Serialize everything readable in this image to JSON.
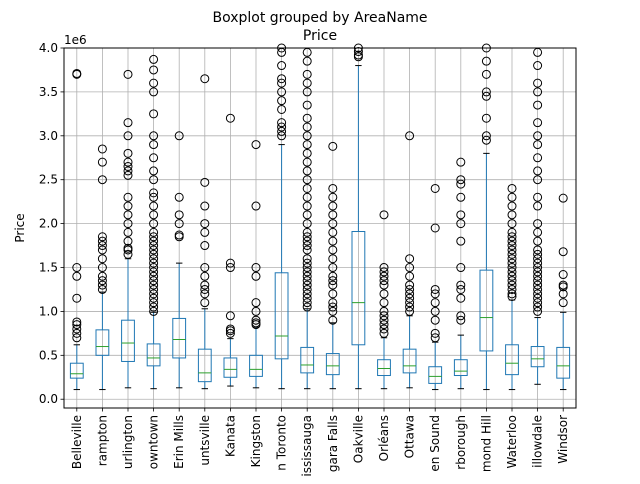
{
  "chart_data": {
    "type": "boxplot",
    "suptitle": "Boxplot grouped by AreaName",
    "title": "Price",
    "xlabel": "",
    "ylabel": "Price",
    "y_offset_label": "1e6",
    "ylim": [
      -0.1,
      4.0
    ],
    "yticks": [
      0.0,
      0.5,
      1.0,
      1.5,
      2.0,
      2.5,
      3.0,
      3.5,
      4.0
    ],
    "ytick_labels": [
      "0.0",
      "0.5",
      "1.0",
      "1.5",
      "2.0",
      "2.5",
      "3.0",
      "3.5",
      "4.0"
    ],
    "grid": true,
    "legend": "none",
    "colors": {
      "box": "#1f77b4",
      "median": "#2ca02c",
      "grid": "#b0b0b0",
      "flier": "#000000"
    },
    "categories": [
      "Belleville",
      "Brampton",
      "Burlington",
      "Downtown",
      "Erin Mills",
      "Huntsville",
      "Kanata",
      "Kingston",
      "North Toronto",
      "Mississauga",
      "Niagara Falls",
      "Oakville",
      "Orléans",
      "Ottawa",
      "Owen Sound",
      "Peterborough",
      "Richmond Hill",
      "Waterloo",
      "Willowdale",
      "Windsor"
    ],
    "tick_labels_visible": [
      "Belleville",
      "rampton",
      "urlington",
      "owntown",
      "Erin Mills",
      "untsville",
      "Kanata",
      "Kingston",
      "n Toronto",
      "ississauga",
      "gara Falls",
      "Oakville",
      "Orléans",
      "Ottawa",
      "en Sound",
      "rborough",
      "mond Hill",
      "Waterloo",
      "illowdale",
      "Windsor"
    ],
    "boxes": [
      {
        "q1": 0.24,
        "median": 0.29,
        "q3": 0.41,
        "whislo": 0.11,
        "whishi": 0.62,
        "fliers": [
          0.7,
          0.75,
          0.8,
          0.85,
          0.88,
          1.15,
          1.4,
          1.5,
          3.7,
          3.71
        ]
      },
      {
        "q1": 0.5,
        "median": 0.6,
        "q3": 0.79,
        "whislo": 0.11,
        "whishi": 1.22,
        "fliers": [
          1.25,
          1.3,
          1.35,
          1.4,
          1.5,
          1.6,
          1.7,
          1.75,
          1.8,
          1.85,
          2.5,
          2.7,
          2.85
        ]
      },
      {
        "q1": 0.43,
        "median": 0.64,
        "q3": 0.9,
        "whislo": 0.13,
        "whishi": 1.6,
        "fliers": [
          1.65,
          1.7,
          1.72,
          1.8,
          1.9,
          2.0,
          2.1,
          2.2,
          2.3,
          2.55,
          2.6,
          2.65,
          2.7,
          2.8,
          3.0,
          3.15,
          3.7
        ]
      },
      {
        "q1": 0.38,
        "median": 0.47,
        "q3": 0.63,
        "whislo": 0.12,
        "whishi": 0.99,
        "fliers": [
          1.0,
          1.05,
          1.1,
          1.15,
          1.2,
          1.25,
          1.3,
          1.35,
          1.4,
          1.45,
          1.5,
          1.55,
          1.6,
          1.65,
          1.7,
          1.75,
          1.8,
          1.85,
          1.9,
          2.0,
          2.1,
          2.2,
          2.3,
          2.35,
          2.5,
          2.6,
          2.75,
          2.9,
          3.0,
          3.25,
          3.5,
          3.6,
          3.75,
          3.87
        ]
      },
      {
        "q1": 0.47,
        "median": 0.68,
        "q3": 0.92,
        "whislo": 0.13,
        "whishi": 1.55,
        "fliers": [
          1.85,
          1.87,
          2.0,
          2.1,
          2.3,
          3.0
        ]
      },
      {
        "q1": 0.2,
        "median": 0.3,
        "q3": 0.57,
        "whislo": 0.12,
        "whishi": 1.03,
        "fliers": [
          1.1,
          1.2,
          1.25,
          1.3,
          1.4,
          1.5,
          1.75,
          1.9,
          2.0,
          2.2,
          2.47,
          3.65
        ]
      },
      {
        "q1": 0.25,
        "median": 0.34,
        "q3": 0.47,
        "whislo": 0.15,
        "whishi": 0.69,
        "fliers": [
          0.75,
          0.78,
          0.8,
          0.95,
          1.5,
          1.55,
          3.2
        ]
      },
      {
        "q1": 0.26,
        "median": 0.34,
        "q3": 0.5,
        "whislo": 0.13,
        "whishi": 0.82,
        "fliers": [
          0.85,
          0.87,
          0.9,
          1.0,
          1.1,
          1.4,
          1.5,
          2.2,
          2.9
        ]
      },
      {
        "q1": 0.46,
        "median": 0.72,
        "q3": 1.44,
        "whislo": 0.12,
        "whishi": 2.9,
        "fliers": [
          3.0,
          3.05,
          3.1,
          3.15,
          3.3,
          3.4,
          3.5,
          3.6,
          3.65,
          3.8,
          3.95,
          4.0
        ]
      },
      {
        "q1": 0.3,
        "median": 0.39,
        "q3": 0.59,
        "whislo": 0.12,
        "whishi": 1.03,
        "fliers": [
          1.05,
          1.1,
          1.15,
          1.2,
          1.25,
          1.3,
          1.35,
          1.4,
          1.45,
          1.5,
          1.55,
          1.6,
          1.7,
          1.75,
          1.8,
          1.85,
          1.9,
          2.0,
          2.1,
          2.2,
          2.3,
          2.4,
          2.5,
          2.6,
          2.7,
          2.8,
          2.9,
          3.0,
          3.1,
          3.2,
          3.35,
          3.5,
          3.6,
          3.7,
          3.85,
          3.95
        ]
      },
      {
        "q1": 0.28,
        "median": 0.38,
        "q3": 0.52,
        "whislo": 0.12,
        "whishi": 0.87,
        "fliers": [
          0.9,
          1.0,
          1.05,
          1.1,
          1.2,
          1.3,
          1.35,
          1.4,
          1.5,
          1.6,
          1.7,
          1.8,
          1.9,
          2.0,
          2.1,
          2.2,
          2.3,
          2.4,
          2.88
        ]
      },
      {
        "q1": 0.62,
        "median": 1.1,
        "q3": 1.91,
        "whislo": 0.12,
        "whishi": 3.8,
        "fliers": [
          3.9,
          3.92,
          3.96,
          4.0
        ]
      },
      {
        "q1": 0.27,
        "median": 0.35,
        "q3": 0.45,
        "whislo": 0.12,
        "whishi": 0.7,
        "fliers": [
          0.75,
          0.8,
          0.85,
          0.9,
          0.95,
          1.0,
          1.1,
          1.2,
          1.3,
          1.35,
          1.4,
          1.45,
          1.5,
          2.1
        ]
      },
      {
        "q1": 0.3,
        "median": 0.38,
        "q3": 0.57,
        "whislo": 0.13,
        "whishi": 0.95,
        "fliers": [
          1.0,
          1.05,
          1.1,
          1.15,
          1.2,
          1.25,
          1.3,
          1.4,
          1.5,
          1.6,
          3.0
        ]
      },
      {
        "q1": 0.18,
        "median": 0.26,
        "q3": 0.37,
        "whislo": 0.11,
        "whishi": 0.65,
        "fliers": [
          0.7,
          0.75,
          0.9,
          1.0,
          1.1,
          1.2,
          1.25,
          1.95,
          2.4
        ]
      },
      {
        "q1": 0.27,
        "median": 0.32,
        "q3": 0.45,
        "whislo": 0.12,
        "whishi": 0.73,
        "fliers": [
          0.9,
          0.95,
          1.15,
          1.25,
          1.3,
          1.5,
          1.8,
          2.0,
          2.1,
          2.3,
          2.45,
          2.5,
          2.7
        ]
      },
      {
        "q1": 0.55,
        "median": 0.93,
        "q3": 1.47,
        "whislo": 0.11,
        "whishi": 2.8,
        "fliers": [
          2.95,
          3.0,
          3.2,
          3.45,
          3.5,
          3.7,
          3.85,
          4.0
        ]
      },
      {
        "q1": 0.28,
        "median": 0.41,
        "q3": 0.62,
        "whislo": 0.11,
        "whishi": 1.13,
        "fliers": [
          1.17,
          1.2,
          1.25,
          1.3,
          1.35,
          1.4,
          1.45,
          1.5,
          1.55,
          1.6,
          1.65,
          1.7,
          1.75,
          1.8,
          1.85,
          1.9,
          2.0,
          2.1,
          2.2,
          2.3,
          2.4
        ]
      },
      {
        "q1": 0.37,
        "median": 0.46,
        "q3": 0.6,
        "whislo": 0.17,
        "whishi": 0.93,
        "fliers": [
          1.0,
          1.05,
          1.1,
          1.15,
          1.2,
          1.25,
          1.3,
          1.35,
          1.4,
          1.45,
          1.5,
          1.55,
          1.6,
          1.65,
          1.7,
          1.8,
          1.9,
          2.0,
          2.2,
          2.3,
          2.5,
          2.6,
          2.75,
          2.9,
          3.0,
          3.15,
          3.35,
          3.5,
          3.6,
          3.8,
          3.95
        ]
      },
      {
        "q1": 0.24,
        "median": 0.38,
        "q3": 0.59,
        "whislo": 0.11,
        "whishi": 0.99,
        "fliers": [
          1.1,
          1.2,
          1.28,
          1.3,
          1.42,
          1.68,
          2.29
        ]
      }
    ]
  }
}
